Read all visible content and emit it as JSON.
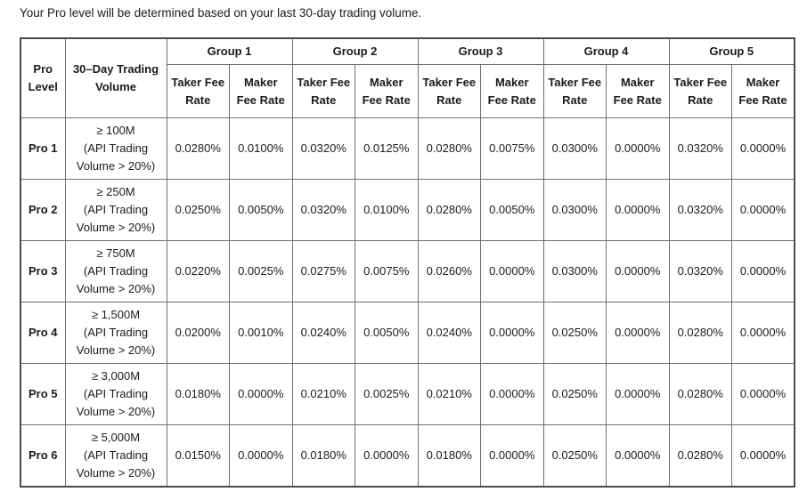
{
  "page": {
    "intro": "Your Pro level will be determined based on your last 30-day trading volume."
  },
  "table": {
    "corner": {
      "pro_level": "Pro Level",
      "volume": "30–Day Trading Volume"
    },
    "groups": [
      "Group 1",
      "Group 2",
      "Group 3",
      "Group 4",
      "Group 5"
    ],
    "sub_headers": {
      "taker": "Taker Fee Rate",
      "maker": "Maker Fee Rate"
    },
    "rows": [
      {
        "level": "Pro 1",
        "volume": "≥ 100M\n(API Trading\nVolume > 20%)",
        "rates": [
          "0.0280%",
          "0.0100%",
          "0.0320%",
          "0.0125%",
          "0.0280%",
          "0.0075%",
          "0.0300%",
          "0.0000%",
          "0.0320%",
          "0.0000%"
        ]
      },
      {
        "level": "Pro 2",
        "volume": "≥ 250M\n(API Trading\nVolume > 20%)",
        "rates": [
          "0.0250%",
          "0.0050%",
          "0.0320%",
          "0.0100%",
          "0.0280%",
          "0.0050%",
          "0.0300%",
          "0.0000%",
          "0.0320%",
          "0.0000%"
        ]
      },
      {
        "level": "Pro 3",
        "volume": "≥ 750M\n(API Trading\nVolume > 20%)",
        "rates": [
          "0.0220%",
          "0.0025%",
          "0.0275%",
          "0.0075%",
          "0.0260%",
          "0.0000%",
          "0.0300%",
          "0.0000%",
          "0.0320%",
          "0.0000%"
        ]
      },
      {
        "level": "Pro 4",
        "volume": "≥ 1,500M\n(API Trading\nVolume > 20%)",
        "rates": [
          "0.0200%",
          "0.0010%",
          "0.0240%",
          "0.0050%",
          "0.0240%",
          "0.0000%",
          "0.0250%",
          "0.0000%",
          "0.0280%",
          "0.0000%"
        ]
      },
      {
        "level": "Pro 5",
        "volume": "≥ 3,000M\n(API Trading\nVolume > 20%)",
        "rates": [
          "0.0180%",
          "0.0000%",
          "0.0210%",
          "0.0025%",
          "0.0210%",
          "0.0000%",
          "0.0250%",
          "0.0000%",
          "0.0280%",
          "0.0000%"
        ]
      },
      {
        "level": "Pro 6",
        "volume": "≥ 5,000M\n(API Trading\nVolume > 20%)",
        "rates": [
          "0.0150%",
          "0.0000%",
          "0.0180%",
          "0.0000%",
          "0.0180%",
          "0.0000%",
          "0.0250%",
          "0.0000%",
          "0.0280%",
          "0.0000%"
        ]
      }
    ]
  }
}
